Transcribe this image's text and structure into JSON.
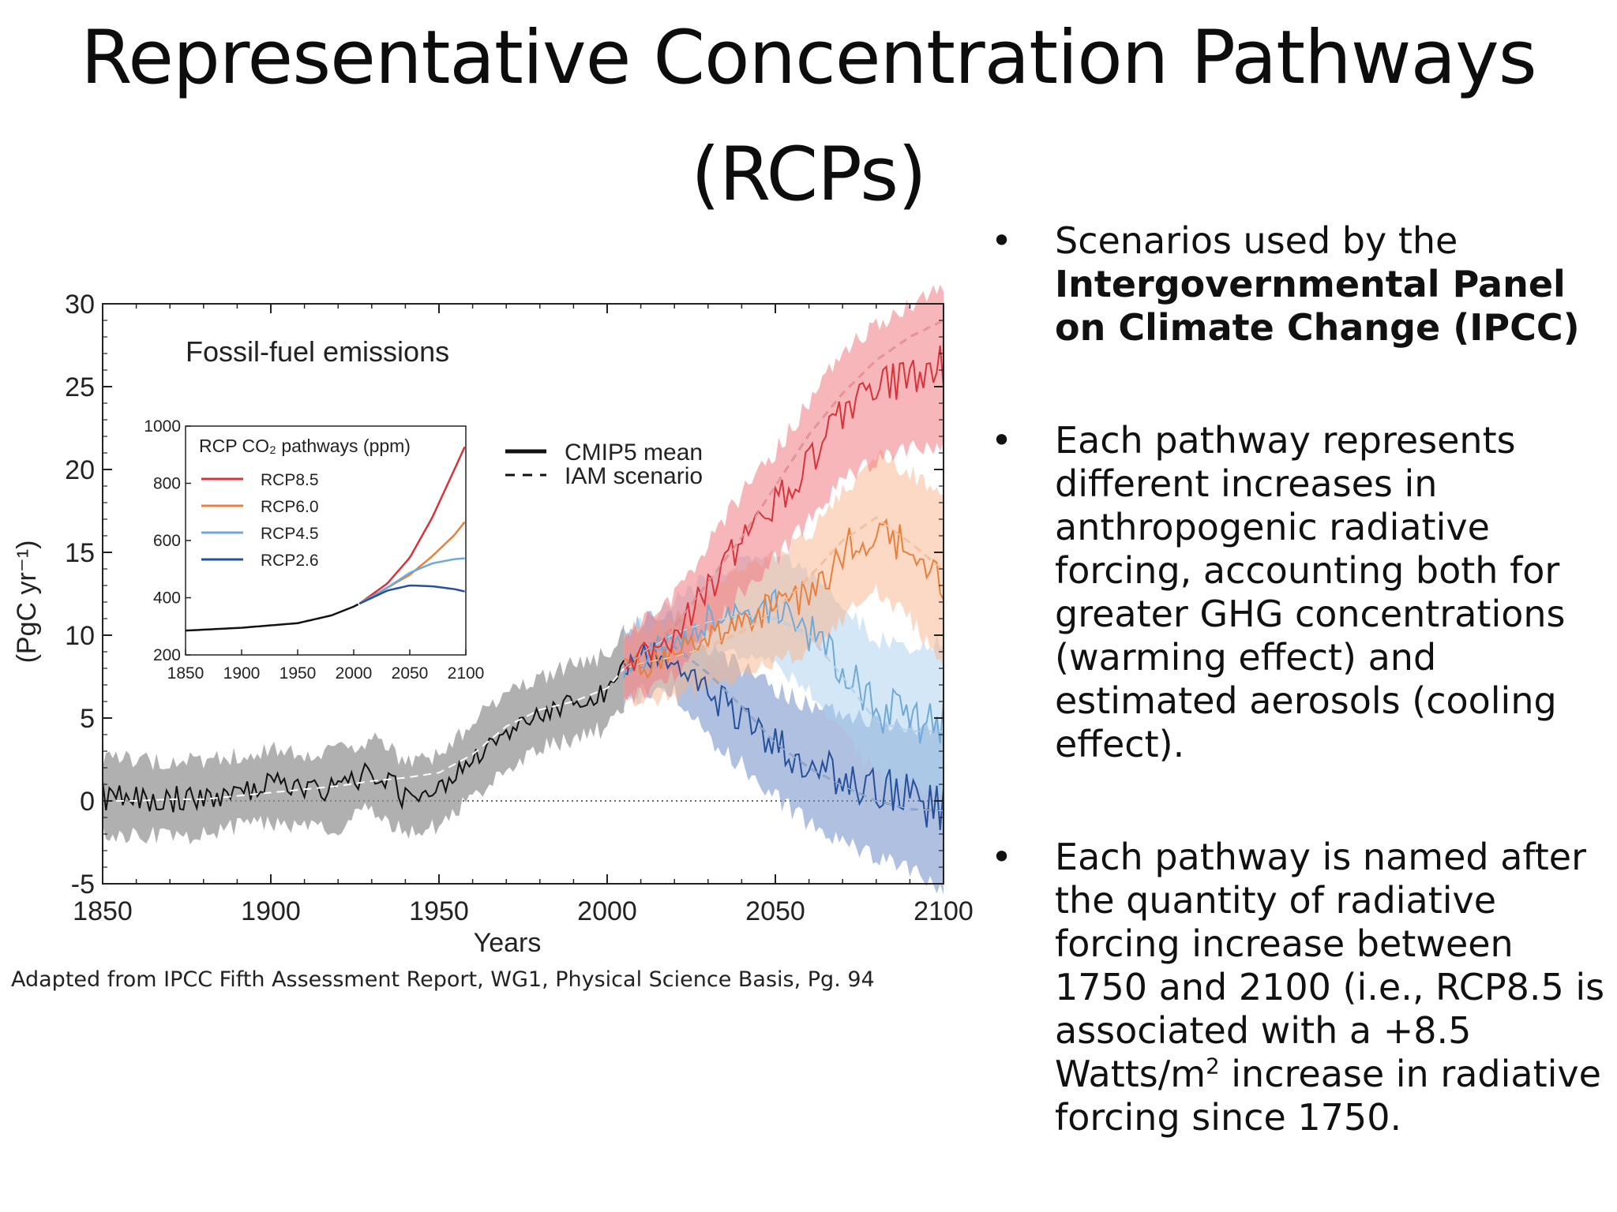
{
  "slide": {
    "title_line1": "Representative Concentration Pathways",
    "title_line2": "(RCPs)",
    "caption": "Adapted from IPCC Fifth Assessment Report, WG1,  Physical Science Basis, Pg. 94",
    "bullet_glyph": "•",
    "bullets": [
      {
        "prefix": "Scenarios used by the ",
        "bold": "Intergovernmental Panel on Climate Change (IPCC)"
      },
      {
        "text": "Each pathway represents different increases in anthropogenic radiative forcing, accounting both for greater GHG concentrations (warming effect) and estimated aerosols (cooling effect)."
      },
      {
        "pre_sup": "Each pathway is named after the quantity of radiative forcing increase between 1750 and 2100 (i.e., RCP8.5 is associated with a +8.5 Watts/m",
        "sup": "2",
        "post_sup": " increase in radiative forcing since 1750."
      }
    ]
  },
  "chart_data": [
    {
      "type": "line",
      "title": "Fossil-fuel emissions",
      "xlabel": "Years",
      "ylabel": "(PgC yr⁻¹)",
      "xlim": [
        1850,
        2100
      ],
      "ylim": [
        -5,
        30
      ],
      "xticks": [
        1850,
        1900,
        1950,
        2000,
        2050,
        2100
      ],
      "yticks": [
        -5,
        0,
        5,
        10,
        15,
        20,
        25,
        30
      ],
      "legend": [
        "CMIP5 mean",
        "IAM scenario"
      ],
      "colors": {
        "historical": "#111111",
        "RCP8.5": "#d8323a",
        "RCP6.0": "#e8803c",
        "RCP4.5": "#6fa9d8",
        "RCP2.6": "#26509a"
      },
      "series": [
        {
          "name": "historical",
          "x": [
            1850,
            1860,
            1870,
            1880,
            1890,
            1900,
            1910,
            1920,
            1930,
            1940,
            1950,
            1960,
            1970,
            1980,
            1990,
            2000,
            2005
          ],
          "values": [
            0.3,
            0.2,
            0.1,
            0.2,
            0.6,
            0.9,
            0.6,
            0.7,
            1.7,
            0.2,
            0.6,
            2.5,
            4.2,
            5.3,
            6.0,
            6.6,
            8.0
          ],
          "iam": [
            0.0,
            0.0,
            0.1,
            0.1,
            0.3,
            0.5,
            0.7,
            0.9,
            1.2,
            1.4,
            1.7,
            2.8,
            4.5,
            5.5,
            6.0,
            6.8,
            8.0
          ]
        },
        {
          "name": "RCP8.5",
          "x": [
            2005,
            2010,
            2020,
            2030,
            2040,
            2050,
            2060,
            2070,
            2080,
            2090,
            2100
          ],
          "values": [
            8.0,
            8.6,
            10.0,
            12.8,
            15.6,
            17.8,
            20.5,
            23.3,
            24.6,
            25.6,
            26.2
          ],
          "iam": [
            8.0,
            8.8,
            10.5,
            13.2,
            15.9,
            19.0,
            22.1,
            24.6,
            26.6,
            28.0,
            29.0
          ]
        },
        {
          "name": "RCP6.0",
          "x": [
            2005,
            2010,
            2020,
            2030,
            2040,
            2050,
            2060,
            2070,
            2080,
            2090,
            2100
          ],
          "values": [
            8.0,
            8.2,
            8.6,
            9.8,
            10.8,
            11.6,
            12.5,
            14.8,
            16.8,
            15.4,
            13.3
          ],
          "iam": [
            8.0,
            8.3,
            8.7,
            9.3,
            10.2,
            11.5,
            13.5,
            15.7,
            17.1,
            15.6,
            13.9
          ]
        },
        {
          "name": "RCP4.5",
          "x": [
            2005,
            2010,
            2020,
            2030,
            2040,
            2050,
            2060,
            2070,
            2080,
            2090,
            2100
          ],
          "values": [
            8.0,
            8.5,
            9.6,
            10.9,
            11.7,
            11.6,
            10.2,
            8.0,
            5.6,
            5.0,
            4.8
          ],
          "iam": [
            8.0,
            8.9,
            10.1,
            10.8,
            11.2,
            11.0,
            10.0,
            7.5,
            4.8,
            4.2,
            4.2
          ]
        },
        {
          "name": "RCP2.6",
          "x": [
            2005,
            2010,
            2020,
            2030,
            2040,
            2050,
            2060,
            2070,
            2080,
            2090,
            2100
          ],
          "values": [
            8.0,
            8.8,
            8.9,
            6.5,
            5.1,
            3.5,
            2.2,
            1.4,
            0.7,
            0.2,
            -0.6
          ],
          "iam": [
            8.0,
            9.0,
            9.3,
            7.7,
            5.7,
            3.5,
            2.0,
            0.9,
            0.0,
            -0.5,
            -0.6
          ]
        }
      ]
    },
    {
      "type": "line",
      "title": "RCP CO₂ pathways (ppm)",
      "xlim": [
        1850,
        2100
      ],
      "ylim": [
        200,
        1000
      ],
      "xticks": [
        1850,
        1900,
        1950,
        2000,
        2050,
        2100
      ],
      "yticks": [
        200,
        400,
        600,
        800,
        1000
      ],
      "series": [
        {
          "name": "historical",
          "x": [
            1850,
            1900,
            1950,
            1980,
            2000,
            2005
          ],
          "values": [
            285,
            295,
            311,
            338,
            369,
            379
          ]
        },
        {
          "name": "RCP8.5",
          "x": [
            2005,
            2030,
            2050,
            2070,
            2090,
            2100
          ],
          "values": [
            379,
            450,
            540,
            680,
            850,
            936
          ]
        },
        {
          "name": "RCP6.0",
          "x": [
            2005,
            2030,
            2050,
            2070,
            2090,
            2100
          ],
          "values": [
            379,
            435,
            480,
            545,
            620,
            670
          ]
        },
        {
          "name": "RCP4.5",
          "x": [
            2005,
            2030,
            2050,
            2070,
            2090,
            2100
          ],
          "values": [
            379,
            435,
            487,
            520,
            535,
            538
          ]
        },
        {
          "name": "RCP2.6",
          "x": [
            2005,
            2030,
            2050,
            2070,
            2090,
            2100
          ],
          "values": [
            379,
            425,
            443,
            440,
            430,
            421
          ]
        }
      ]
    }
  ]
}
